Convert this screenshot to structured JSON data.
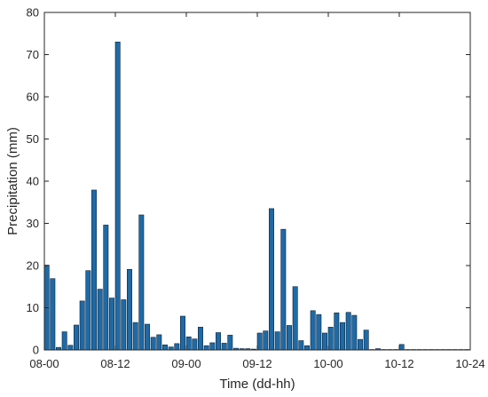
{
  "chart_data": {
    "type": "bar",
    "title": "",
    "xlabel": "Time (dd-hh)",
    "ylabel": "Precipitation (mm)",
    "ylim": [
      0,
      80
    ],
    "yticks": [
      0,
      10,
      20,
      30,
      40,
      50,
      60,
      70,
      80
    ],
    "xlim": [
      0,
      72
    ],
    "xticks": [
      0,
      12,
      24,
      36,
      48,
      60,
      72
    ],
    "xtick_labels": [
      "08-00",
      "08-12",
      "09-00",
      "09-12",
      "10-00",
      "10-12",
      "10-24"
    ],
    "grid": false,
    "bar_color": "#1f6aa5",
    "bar_edge_color": "#0a2540",
    "x_hours": [
      0,
      1,
      2,
      3,
      4,
      5,
      6,
      7,
      8,
      9,
      10,
      11,
      12,
      13,
      14,
      15,
      16,
      17,
      18,
      19,
      20,
      21,
      22,
      23,
      24,
      25,
      26,
      27,
      28,
      29,
      30,
      31,
      32,
      33,
      34,
      35,
      36,
      37,
      38,
      39,
      40,
      41,
      42,
      43,
      44,
      45,
      46,
      47,
      48,
      49,
      50,
      51,
      52,
      53,
      54,
      55,
      56,
      57,
      58,
      59,
      60,
      61,
      62,
      63,
      64,
      65,
      66,
      67,
      68,
      69,
      70,
      71
    ],
    "values": [
      20.1,
      16.9,
      0.6,
      4.3,
      1.1,
      5.9,
      11.6,
      18.8,
      37.9,
      14.4,
      29.6,
      12.3,
      73.0,
      11.9,
      19.1,
      6.5,
      32.0,
      6.1,
      3.0,
      3.6,
      1.2,
      0.7,
      1.5,
      8.0,
      3.1,
      2.6,
      5.4,
      1.0,
      1.7,
      4.1,
      1.6,
      3.5,
      0.4,
      0.3,
      0.3,
      0.2,
      4.0,
      4.5,
      33.5,
      4.3,
      28.6,
      5.8,
      15.0,
      2.2,
      1.0,
      9.3,
      8.4,
      4.0,
      5.4,
      8.8,
      6.5,
      8.9,
      8.2,
      2.5,
      4.7,
      0.1,
      0.3,
      0.1,
      0.1,
      0.1,
      1.3,
      0.1,
      0.1,
      0.1,
      0.1,
      0.1,
      0.1,
      0.1,
      0.1,
      0.1,
      0.1,
      0.1
    ]
  }
}
